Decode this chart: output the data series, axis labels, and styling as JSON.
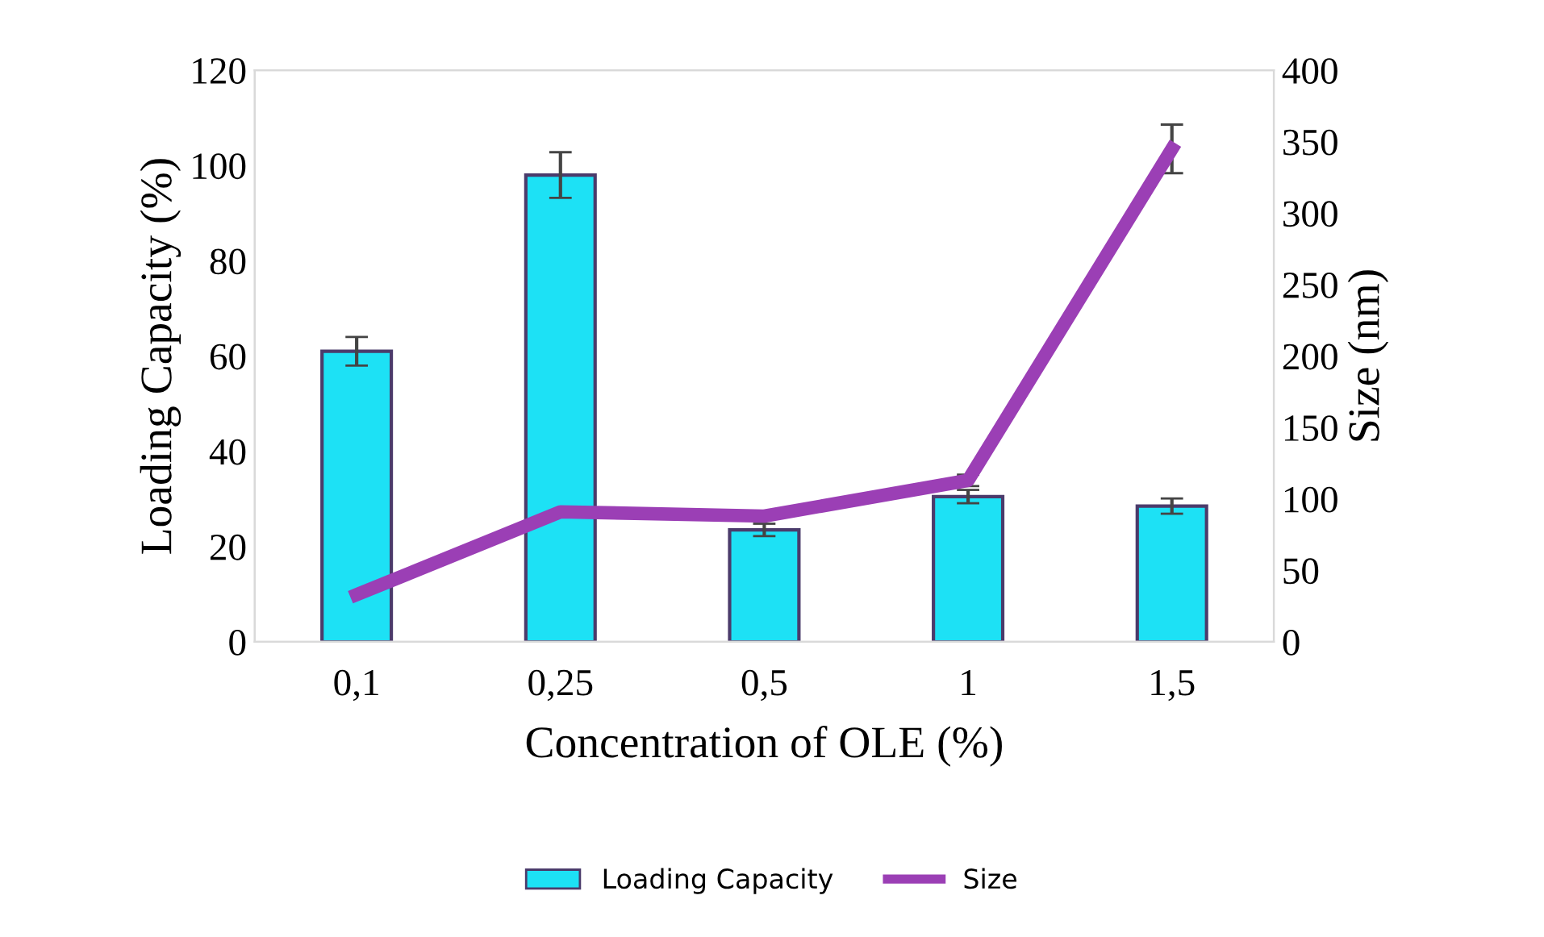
{
  "chart_data": {
    "type": "bar",
    "xlabel": "Concentration of OLE (%)",
    "ylabel": "Loading Capacity (%)",
    "y2label": "Size (nm)",
    "categories": [
      "0,1",
      "0,25",
      "0,5",
      "1",
      "1,5"
    ],
    "series": [
      {
        "name": "Loading Capacity",
        "color": "#1de1f5",
        "values": [
          61,
          98,
          23.5,
          30.5,
          28.5
        ],
        "errors": [
          3,
          4.8,
          1.3,
          1.4,
          1.6
        ]
      },
      {
        "name": "Size",
        "type": "line",
        "axis": "y2",
        "color": "#9b3fb5",
        "values": [
          33,
          91,
          88,
          113,
          345
        ],
        "errors": [
          null,
          null,
          null,
          4,
          17
        ]
      }
    ],
    "ylim": [
      0,
      120
    ],
    "yticks": [
      0,
      20,
      40,
      60,
      80,
      100,
      120
    ],
    "y2lim": [
      0,
      400
    ],
    "y2ticks": [
      0,
      50,
      100,
      150,
      200,
      250,
      300,
      350,
      400
    ],
    "grid": false,
    "legend": "bottom",
    "marker": "none",
    "line_style": "solid"
  }
}
